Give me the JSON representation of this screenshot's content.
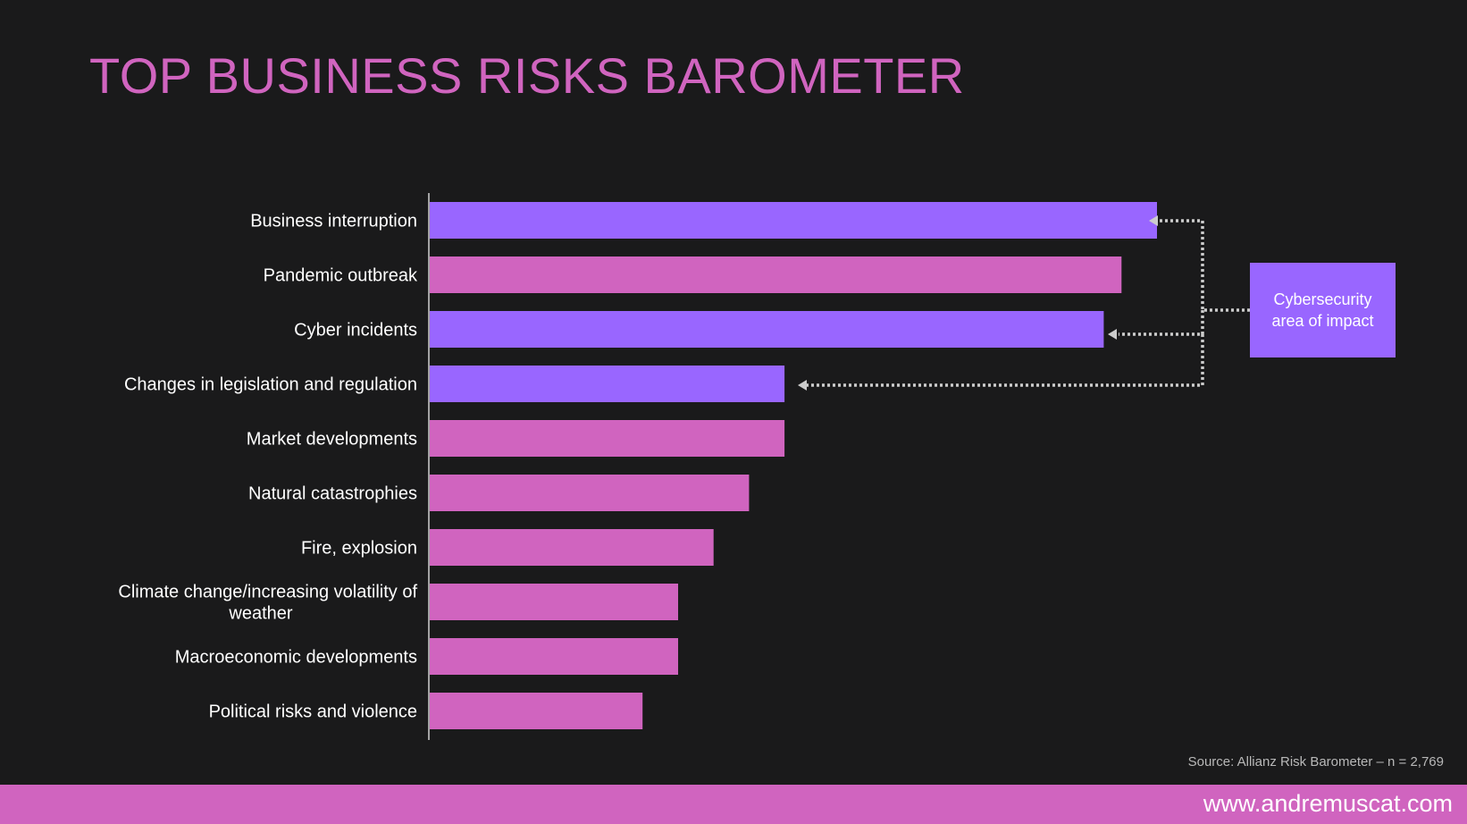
{
  "title": "TOP BUSINESS RISKS BAROMETER",
  "colors": {
    "background": "#1a1a1b",
    "accent": "#d064bf",
    "cyber": "#9966ff",
    "text": "#ffffff",
    "arrow": "#cccccc"
  },
  "chart_data": {
    "type": "bar",
    "orientation": "horizontal",
    "title": "TOP BUSINESS RISKS BAROMETER",
    "categories": [
      "Business interruption",
      "Pandemic outbreak",
      "Cyber incidents",
      "Changes in legislation and regulation",
      "Market developments",
      "Natural catastrophies",
      "Fire, explosion",
      "Climate change/increasing volatility of weather",
      "Macroeconomic developments",
      "Political risks and violence"
    ],
    "values": [
      41,
      39,
      38,
      20,
      20,
      18,
      16,
      14,
      14,
      12
    ],
    "highlighted": [
      true,
      false,
      true,
      true,
      false,
      false,
      false,
      false,
      false,
      false
    ],
    "xlim": [
      0,
      41
    ],
    "grid": false,
    "annotation": "Cybersecurity area of impact"
  },
  "callout": {
    "text": "Cybersecurity area of impact"
  },
  "source": "Source: Allianz Risk Barometer – n = 2,769",
  "footer": {
    "url": "www.andremuscat.com"
  }
}
